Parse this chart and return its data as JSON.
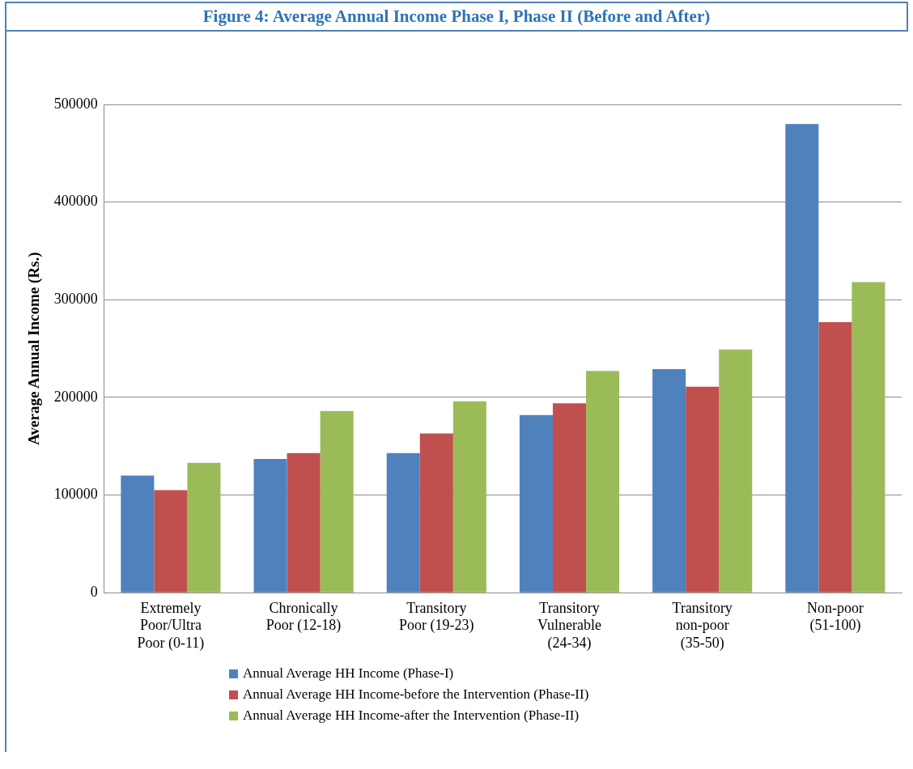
{
  "chart_data": {
    "type": "bar",
    "title": "Figure 4: Average Annual Income Phase I, Phase II (Before and After)",
    "ylabel": "Average Annual Income (Rs.)",
    "categories": [
      "Extremely Poor/Ultra Poor (0-11)",
      "Chronically Poor (12-18)",
      "Transitory Poor (19-23)",
      "Transitory Vulnerable (24-34)",
      "Transitory non-poor (35-50)",
      "Non-poor (51-100)"
    ],
    "series": [
      {
        "name": "Annual Average HH Income (Phase-I)",
        "color": "#4f81bd",
        "values": [
          120000,
          137000,
          143000,
          182000,
          229000,
          480000
        ]
      },
      {
        "name": "Annual Average HH Income-before the Intervention (Phase-II)",
        "color": "#c0504d",
        "values": [
          105000,
          143000,
          163000,
          194000,
          211000,
          277000
        ]
      },
      {
        "name": "Annual Average HH Income-after the Intervention (Phase-II)",
        "color": "#9bbb59",
        "values": [
          133000,
          186000,
          196000,
          227000,
          249000,
          318000
        ]
      }
    ],
    "ylim": [
      0,
      500000
    ],
    "yticks": [
      0,
      100000,
      200000,
      300000,
      400000,
      500000
    ],
    "grid": "y",
    "legend": "bottom"
  }
}
